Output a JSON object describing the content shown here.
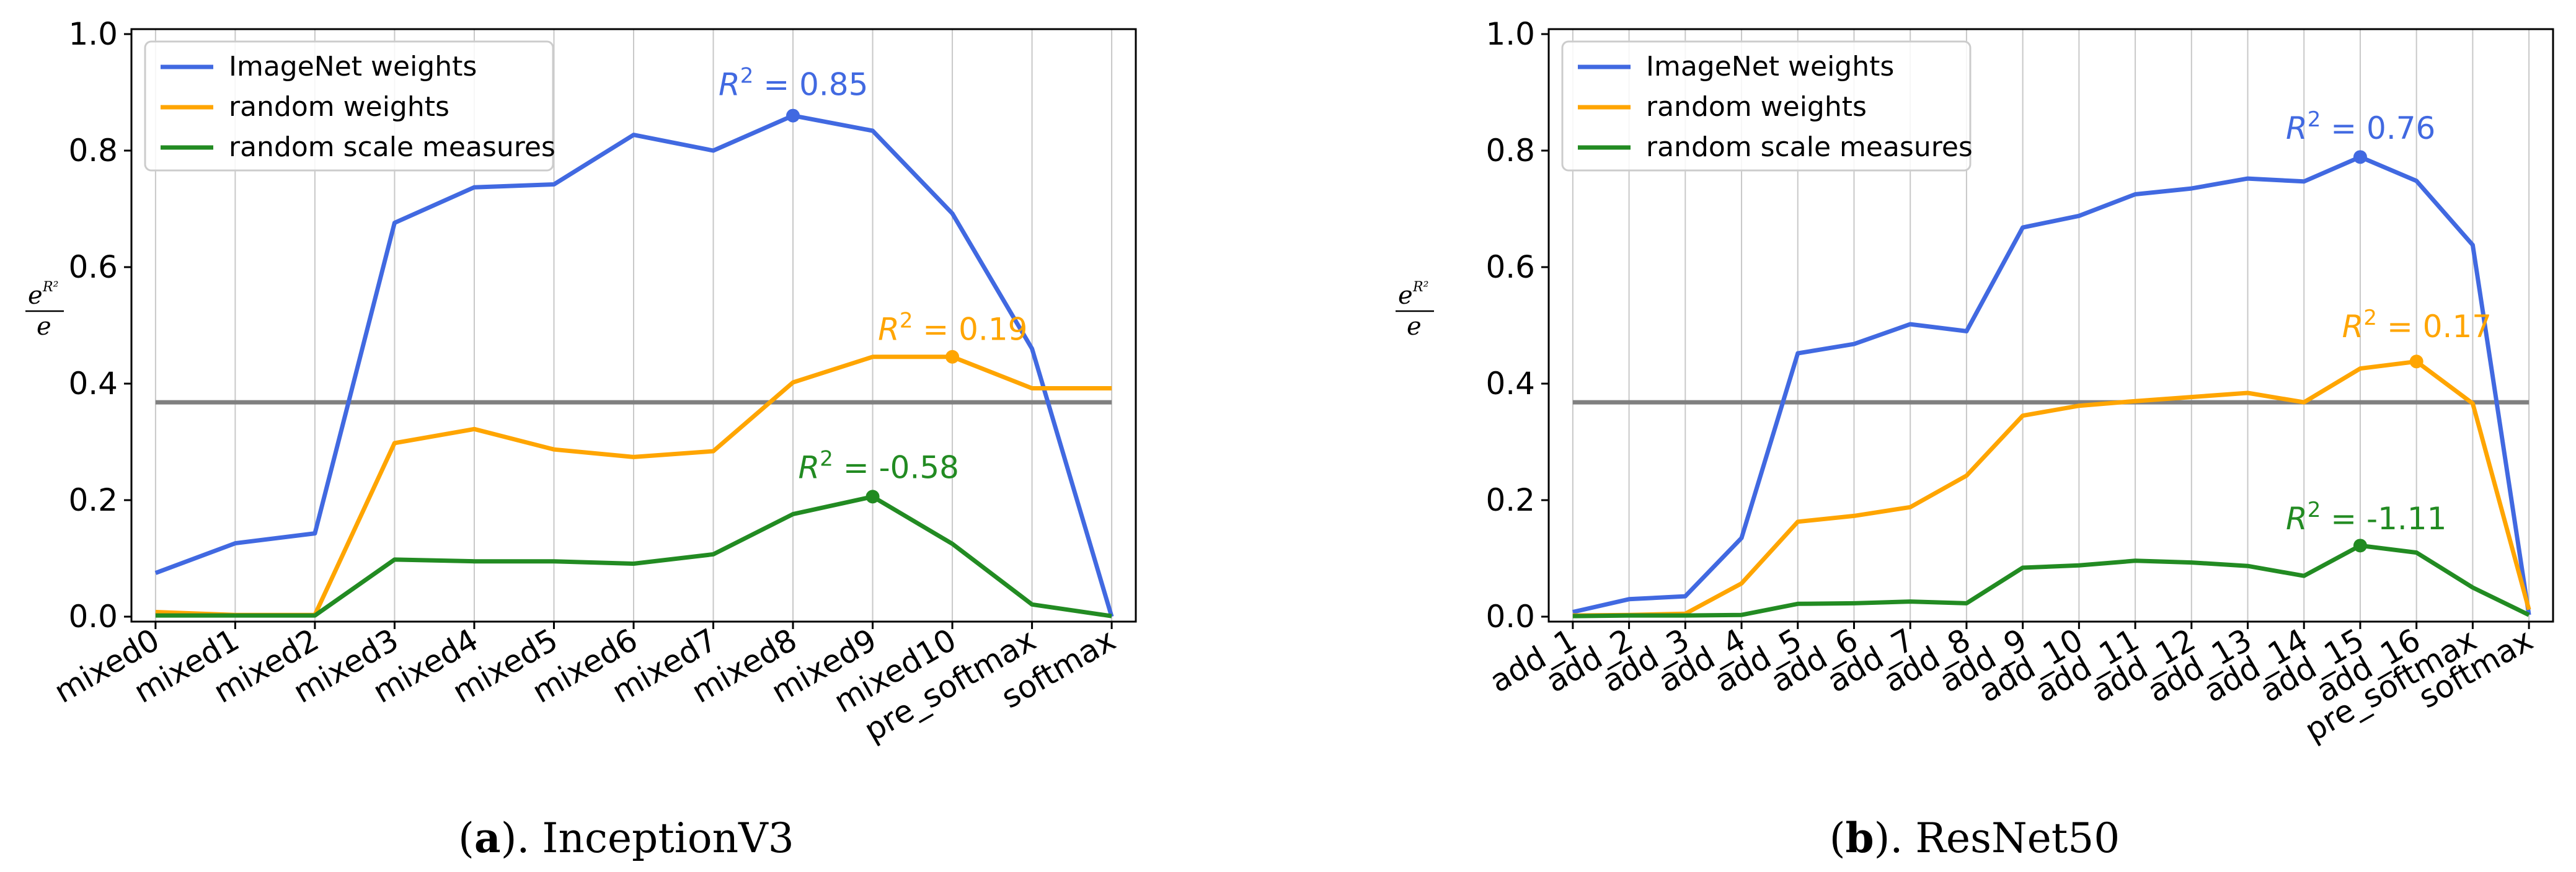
{
  "chart_data": [
    {
      "type": "line",
      "caption_letter": "a",
      "caption_text": "InceptionV3",
      "ylabel_base": "e",
      "ylabel_exp": "R²",
      "ylabel_den": "e",
      "ylim": [
        0,
        1.0
      ],
      "yticks": [
        "0.0",
        "0.2",
        "0.4",
        "0.6",
        "0.8",
        "1.0"
      ],
      "ytick_values": [
        0,
        0.2,
        0.4,
        0.6,
        0.8,
        1.0
      ],
      "categories": [
        "mixed0",
        "mixed1",
        "mixed2",
        "mixed3",
        "mixed4",
        "mixed5",
        "mixed6",
        "mixed7",
        "mixed8",
        "mixed9",
        "mixed10",
        "pre_softmax",
        "softmax"
      ],
      "reference_line": 0.368,
      "series": [
        {
          "name": "ImageNet weights",
          "color": "#4169e1",
          "values": [
            0.075,
            0.126,
            0.143,
            0.676,
            0.737,
            0.742,
            0.827,
            0.8,
            0.86,
            0.834,
            0.692,
            0.46,
            0.0
          ],
          "r2_label": "= 0.85",
          "marker_index": 8,
          "label_value": 0.895
        },
        {
          "name": "random weights",
          "color": "#ffa500",
          "values": [
            0.008,
            0.003,
            0.003,
            0.298,
            0.322,
            0.287,
            0.274,
            0.284,
            0.402,
            0.446,
            0.446,
            0.392,
            0.392
          ],
          "r2_label": "= 0.19",
          "marker_index": 10,
          "label_value": 0.475
        },
        {
          "name": "random scale measures",
          "color": "#228b22",
          "values": [
            0.002,
            0.002,
            0.002,
            0.098,
            0.095,
            0.095,
            0.091,
            0.107,
            0.176,
            0.206,
            0.125,
            0.021,
            0.001
          ],
          "r2_label": "= -0.58",
          "marker_index": 9,
          "label_value": 0.238
        }
      ],
      "legend_position": "top-left",
      "grid": "vertical"
    },
    {
      "type": "line",
      "caption_letter": "b",
      "caption_text": "ResNet50",
      "ylabel_base": "e",
      "ylabel_exp": "R²",
      "ylabel_den": "e",
      "ylim": [
        0,
        1.0
      ],
      "yticks": [
        "0.0",
        "0.2",
        "0.4",
        "0.6",
        "0.8",
        "1.0"
      ],
      "ytick_values": [
        0,
        0.2,
        0.4,
        0.6,
        0.8,
        1.0
      ],
      "categories": [
        "add_1",
        "add_2",
        "add_3",
        "add_4",
        "add_5",
        "add_6",
        "add_7",
        "add_8",
        "add_9",
        "add_10",
        "add_11",
        "add_12",
        "add_13",
        "add_14",
        "add_15",
        "add_16",
        "pre_softmax",
        "softmax"
      ],
      "reference_line": 0.368,
      "series": [
        {
          "name": "ImageNet weights",
          "color": "#4169e1",
          "values": [
            0.008,
            0.03,
            0.035,
            0.135,
            0.452,
            0.468,
            0.502,
            0.49,
            0.668,
            0.688,
            0.725,
            0.735,
            0.752,
            0.747,
            0.789,
            0.748,
            0.638,
            0.003
          ],
          "r2_label": "= 0.76",
          "marker_index": 14,
          "label_value": 0.82
        },
        {
          "name": "random weights",
          "color": "#ffa500",
          "values": [
            0.002,
            0.003,
            0.005,
            0.057,
            0.163,
            0.173,
            0.188,
            0.242,
            0.345,
            0.362,
            0.37,
            0.377,
            0.384,
            0.368,
            0.426,
            0.438,
            0.366,
            0.012
          ],
          "r2_label": "= 0.17",
          "marker_index": 15,
          "label_value": 0.48
        },
        {
          "name": "random scale measures",
          "color": "#228b22",
          "values": [
            0.001,
            0.002,
            0.002,
            0.003,
            0.022,
            0.023,
            0.026,
            0.023,
            0.084,
            0.088,
            0.096,
            0.093,
            0.087,
            0.07,
            0.122,
            0.11,
            0.05,
            0.003
          ],
          "r2_label": "= -1.11",
          "marker_index": 14,
          "label_value": 0.15
        }
      ],
      "legend_position": "top-left",
      "grid": "vertical"
    }
  ]
}
